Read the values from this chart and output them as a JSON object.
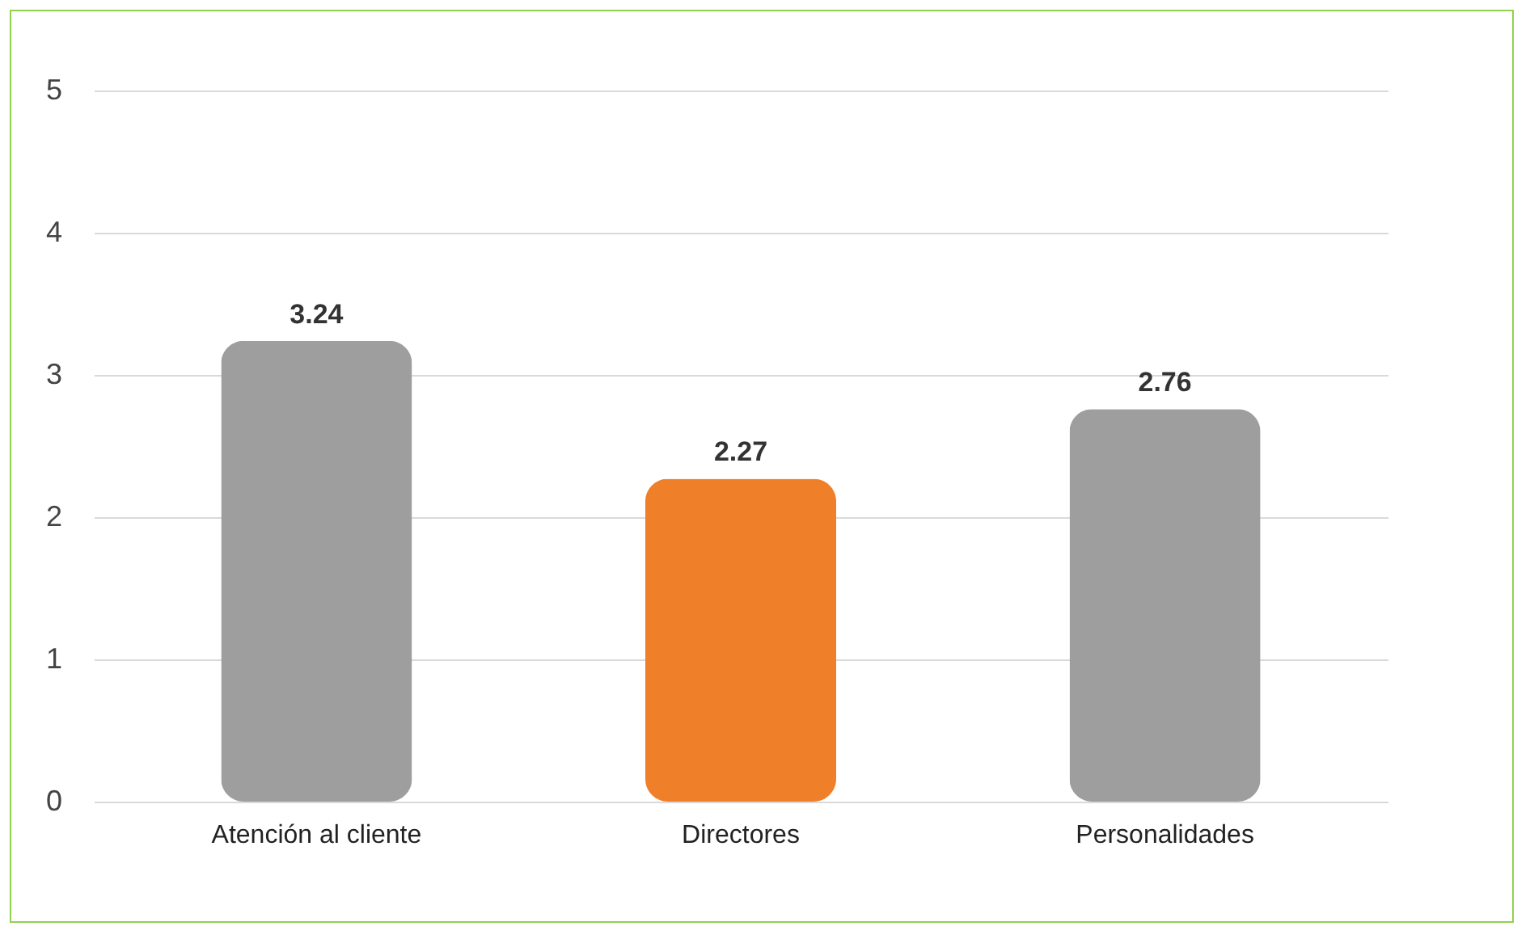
{
  "chart_data": {
    "type": "bar",
    "categories": [
      "Atención al cliente",
      "Directores",
      "Personalidades"
    ],
    "values": [
      3.24,
      2.27,
      2.76
    ],
    "colors": [
      "#9e9e9e",
      "#f07f2a",
      "#9e9e9e"
    ],
    "ylim": [
      0,
      5
    ],
    "yticks": [
      0,
      1,
      2,
      3,
      4,
      5
    ],
    "grid": "y",
    "data_labels": true
  }
}
